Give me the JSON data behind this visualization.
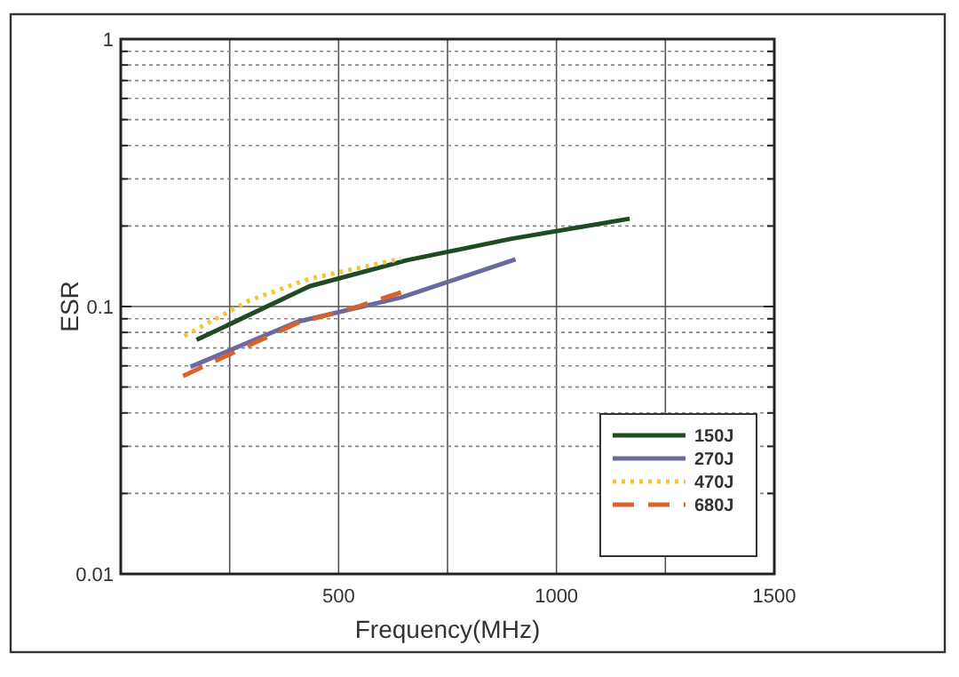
{
  "chart_data": {
    "type": "line",
    "xlabel": "Frequency(MHz)",
    "ylabel": "ESR",
    "log": "y",
    "grid": true,
    "legend": "bottom right",
    "xlim": [
      0,
      1500
    ],
    "xticks": [
      {
        "value": 250,
        "label": null
      },
      500,
      {
        "value": 750,
        "label": null
      },
      1000,
      {
        "value": 1250,
        "label": null
      },
      1500
    ],
    "ylim": [
      0.01,
      1
    ],
    "yticks": [
      0.01,
      {
        "value": 0.02,
        "label": null
      },
      {
        "value": 0.03,
        "label": null
      },
      {
        "value": 0.04,
        "label": null
      },
      {
        "value": 0.05,
        "label": null
      },
      {
        "value": 0.06,
        "label": null
      },
      {
        "value": 0.07,
        "label": null
      },
      {
        "value": 0.08,
        "label": null
      },
      {
        "value": 0.09,
        "label": null
      },
      0.1,
      {
        "value": 0.2,
        "label": null
      },
      {
        "value": 0.3,
        "label": null
      },
      {
        "value": 0.4,
        "label": null
      },
      {
        "value": 0.5,
        "label": null
      },
      {
        "value": 0.6,
        "label": null
      },
      {
        "value": 0.7,
        "label": null
      },
      {
        "value": 0.8,
        "label": null
      },
      {
        "value": 0.9,
        "label": null
      },
      1
    ],
    "series": [
      {
        "name": "150J",
        "color": "#1f4a24",
        "line_style": "solid",
        "x": [
          174,
          433,
          657,
          895,
          1168
        ],
        "values": [
          0.075,
          0.119,
          0.149,
          0.179,
          0.213
        ]
      },
      {
        "name": "270J",
        "color": "#6a6a9e",
        "line_style": "solid",
        "x": [
          160,
          405,
          643,
          906
        ],
        "values": [
          0.0595,
          0.0876,
          0.108,
          0.15
        ]
      },
      {
        "name": "470J",
        "color": "#f7c531",
        "line_style": "dotted",
        "x": [
          146,
          293,
          433,
          643
        ],
        "values": [
          0.0776,
          0.105,
          0.127,
          0.151
        ]
      },
      {
        "name": "680J",
        "color": "#d9622b",
        "line_style": "dashed",
        "x": [
          143,
          405,
          545,
          643
        ],
        "values": [
          0.055,
          0.0867,
          0.1,
          0.113
        ]
      }
    ]
  }
}
